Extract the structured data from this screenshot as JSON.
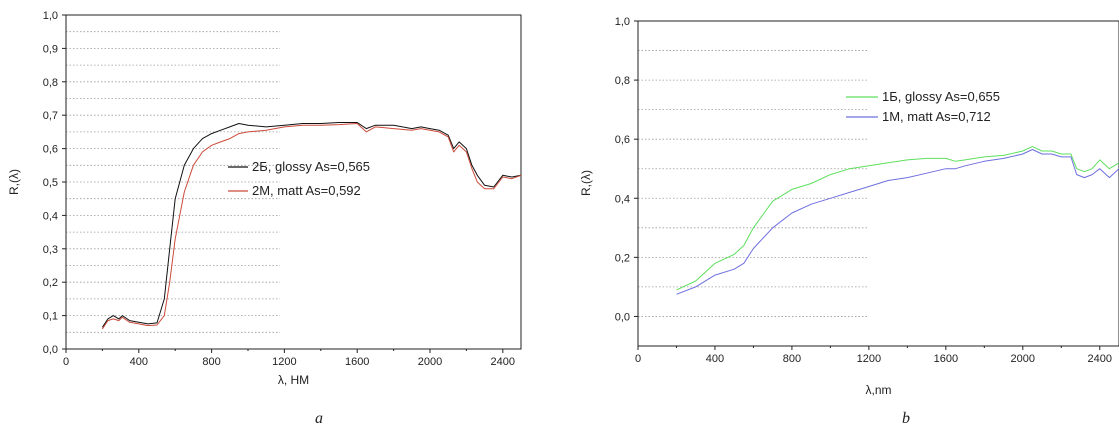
{
  "chart_data": [
    {
      "type": "line",
      "panel_label": "a",
      "xlabel": "λ, НМ",
      "ylabel": "R,(λ)",
      "xlim": [
        0,
        2500
      ],
      "ylim": [
        0,
        1.0
      ],
      "x_ticks": [
        "0",
        "400",
        "800",
        "1200",
        "1600",
        "2000",
        "2400"
      ],
      "y_ticks": [
        "0,0",
        "0,1",
        "0,2",
        "0,3",
        "0,4",
        "0,5",
        "0,6",
        "0,7",
        "0,8",
        "0,9",
        "1,0"
      ],
      "grid": "horizontal dotted, left part",
      "legend_position": "center-right",
      "series": [
        {
          "name": "2Б, glossy As=0,565",
          "color": "#111111",
          "points": [
            [
              200,
              0.065
            ],
            [
              230,
              0.09
            ],
            [
              260,
              0.1
            ],
            [
              290,
              0.09
            ],
            [
              310,
              0.1
            ],
            [
              350,
              0.085
            ],
            [
              400,
              0.08
            ],
            [
              450,
              0.075
            ],
            [
              500,
              0.078
            ],
            [
              540,
              0.15
            ],
            [
              570,
              0.3
            ],
            [
              600,
              0.45
            ],
            [
              650,
              0.55
            ],
            [
              700,
              0.6
            ],
            [
              750,
              0.63
            ],
            [
              800,
              0.645
            ],
            [
              850,
              0.655
            ],
            [
              900,
              0.665
            ],
            [
              950,
              0.675
            ],
            [
              1000,
              0.67
            ],
            [
              1100,
              0.665
            ],
            [
              1200,
              0.67
            ],
            [
              1300,
              0.675
            ],
            [
              1400,
              0.675
            ],
            [
              1500,
              0.678
            ],
            [
              1600,
              0.678
            ],
            [
              1650,
              0.66
            ],
            [
              1700,
              0.67
            ],
            [
              1800,
              0.67
            ],
            [
              1900,
              0.66
            ],
            [
              1950,
              0.665
            ],
            [
              2000,
              0.66
            ],
            [
              2050,
              0.655
            ],
            [
              2100,
              0.64
            ],
            [
              2130,
              0.6
            ],
            [
              2160,
              0.62
            ],
            [
              2200,
              0.6
            ],
            [
              2230,
              0.55
            ],
            [
              2260,
              0.52
            ],
            [
              2300,
              0.49
            ],
            [
              2350,
              0.485
            ],
            [
              2400,
              0.52
            ],
            [
              2450,
              0.515
            ],
            [
              2500,
              0.52
            ]
          ]
        },
        {
          "name": "2М, matt    As=0,592",
          "color": "#cc4a3a",
          "points": [
            [
              200,
              0.06
            ],
            [
              230,
              0.085
            ],
            [
              260,
              0.09
            ],
            [
              290,
              0.085
            ],
            [
              310,
              0.095
            ],
            [
              350,
              0.08
            ],
            [
              400,
              0.075
            ],
            [
              450,
              0.07
            ],
            [
              500,
              0.072
            ],
            [
              540,
              0.1
            ],
            [
              570,
              0.2
            ],
            [
              600,
              0.33
            ],
            [
              650,
              0.47
            ],
            [
              700,
              0.55
            ],
            [
              750,
              0.59
            ],
            [
              800,
              0.61
            ],
            [
              850,
              0.62
            ],
            [
              900,
              0.63
            ],
            [
              950,
              0.645
            ],
            [
              1000,
              0.65
            ],
            [
              1100,
              0.655
            ],
            [
              1200,
              0.665
            ],
            [
              1300,
              0.67
            ],
            [
              1400,
              0.67
            ],
            [
              1500,
              0.672
            ],
            [
              1600,
              0.675
            ],
            [
              1650,
              0.65
            ],
            [
              1700,
              0.665
            ],
            [
              1800,
              0.66
            ],
            [
              1900,
              0.655
            ],
            [
              1950,
              0.66
            ],
            [
              2000,
              0.655
            ],
            [
              2050,
              0.65
            ],
            [
              2100,
              0.635
            ],
            [
              2130,
              0.59
            ],
            [
              2160,
              0.61
            ],
            [
              2200,
              0.59
            ],
            [
              2230,
              0.54
            ],
            [
              2260,
              0.5
            ],
            [
              2300,
              0.48
            ],
            [
              2350,
              0.48
            ],
            [
              2400,
              0.515
            ],
            [
              2450,
              0.51
            ],
            [
              2500,
              0.52
            ]
          ]
        }
      ]
    },
    {
      "type": "line",
      "panel_label": "b",
      "xlabel": "λ,nm",
      "ylabel": "R,(λ)",
      "xlim": [
        0,
        2500
      ],
      "ylim": [
        -0.1,
        1.0
      ],
      "x_ticks": [
        "0",
        "400",
        "800",
        "1200",
        "1600",
        "2000",
        "2400"
      ],
      "y_ticks": [
        "0,0",
        "0,2",
        "0,4",
        "0,6",
        "0,8",
        "1,0"
      ],
      "grid": "horizontal dotted, left part",
      "legend_position": "center-right",
      "series": [
        {
          "name": "1Б, glossy As=0,655",
          "color": "#5ee05e",
          "points": [
            [
              200,
              0.09
            ],
            [
              300,
              0.12
            ],
            [
              400,
              0.18
            ],
            [
              500,
              0.21
            ],
            [
              550,
              0.24
            ],
            [
              600,
              0.3
            ],
            [
              700,
              0.39
            ],
            [
              800,
              0.43
            ],
            [
              900,
              0.45
            ],
            [
              1000,
              0.48
            ],
            [
              1100,
              0.5
            ],
            [
              1200,
              0.51
            ],
            [
              1300,
              0.52
            ],
            [
              1400,
              0.53
            ],
            [
              1500,
              0.535
            ],
            [
              1600,
              0.535
            ],
            [
              1650,
              0.525
            ],
            [
              1700,
              0.53
            ],
            [
              1800,
              0.54
            ],
            [
              1900,
              0.545
            ],
            [
              2000,
              0.56
            ],
            [
              2050,
              0.575
            ],
            [
              2100,
              0.56
            ],
            [
              2150,
              0.56
            ],
            [
              2200,
              0.55
            ],
            [
              2250,
              0.55
            ],
            [
              2280,
              0.5
            ],
            [
              2320,
              0.49
            ],
            [
              2360,
              0.5
            ],
            [
              2400,
              0.53
            ],
            [
              2450,
              0.5
            ],
            [
              2500,
              0.52
            ]
          ]
        },
        {
          "name": "1М, matt   As=0,712",
          "color": "#6f6fe0",
          "points": [
            [
              200,
              0.075
            ],
            [
              300,
              0.1
            ],
            [
              400,
              0.14
            ],
            [
              500,
              0.16
            ],
            [
              550,
              0.18
            ],
            [
              600,
              0.23
            ],
            [
              700,
              0.3
            ],
            [
              800,
              0.35
            ],
            [
              900,
              0.38
            ],
            [
              1000,
              0.4
            ],
            [
              1100,
              0.42
            ],
            [
              1200,
              0.44
            ],
            [
              1300,
              0.46
            ],
            [
              1400,
              0.47
            ],
            [
              1500,
              0.485
            ],
            [
              1600,
              0.5
            ],
            [
              1650,
              0.5
            ],
            [
              1700,
              0.51
            ],
            [
              1800,
              0.525
            ],
            [
              1900,
              0.535
            ],
            [
              2000,
              0.55
            ],
            [
              2050,
              0.565
            ],
            [
              2100,
              0.55
            ],
            [
              2150,
              0.55
            ],
            [
              2200,
              0.54
            ],
            [
              2250,
              0.54
            ],
            [
              2280,
              0.48
            ],
            [
              2320,
              0.47
            ],
            [
              2360,
              0.48
            ],
            [
              2400,
              0.5
            ],
            [
              2450,
              0.47
            ],
            [
              2500,
              0.5
            ]
          ]
        }
      ]
    }
  ],
  "panels": {
    "a": {
      "caption": "a"
    },
    "b": {
      "caption": "b"
    }
  }
}
